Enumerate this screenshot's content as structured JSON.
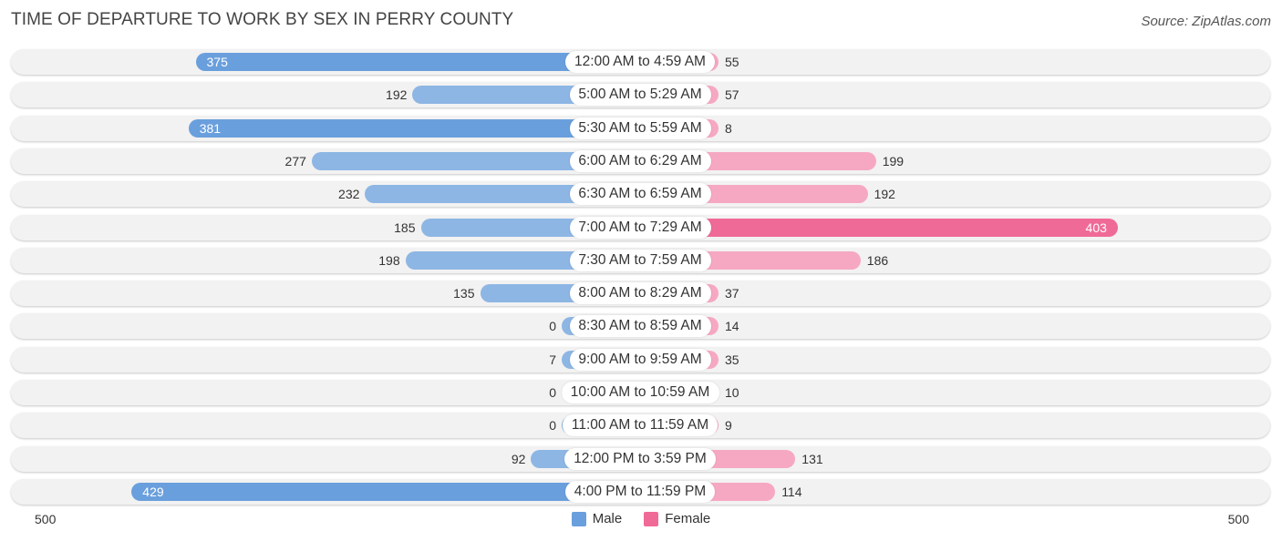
{
  "chart_data": {
    "type": "bar",
    "orientation": "horizontal-diverging",
    "title": "TIME OF DEPARTURE TO WORK BY SEX IN PERRY COUNTY",
    "source": "Source: ZipAtlas.com",
    "categories": [
      "12:00 AM to 4:59 AM",
      "5:00 AM to 5:29 AM",
      "5:30 AM to 5:59 AM",
      "6:00 AM to 6:29 AM",
      "6:30 AM to 6:59 AM",
      "7:00 AM to 7:29 AM",
      "7:30 AM to 7:59 AM",
      "8:00 AM to 8:29 AM",
      "8:30 AM to 8:59 AM",
      "9:00 AM to 9:59 AM",
      "10:00 AM to 10:59 AM",
      "11:00 AM to 11:59 AM",
      "12:00 PM to 3:59 PM",
      "4:00 PM to 11:59 PM"
    ],
    "series": [
      {
        "name": "Male",
        "color": "#6a9fdd",
        "light_color": "#8db6e4",
        "values": [
          375,
          192,
          381,
          277,
          232,
          185,
          198,
          135,
          0,
          7,
          0,
          0,
          92,
          429
        ]
      },
      {
        "name": "Female",
        "color": "#f06a97",
        "light_color": "#f6a8c2",
        "values": [
          55,
          57,
          8,
          199,
          192,
          403,
          186,
          37,
          14,
          35,
          10,
          9,
          131,
          114
        ]
      }
    ],
    "axis": {
      "min_label": "500",
      "max_label": "500",
      "max": 500
    },
    "legend": [
      "Male",
      "Female"
    ],
    "legend_position": "bottom-center"
  }
}
